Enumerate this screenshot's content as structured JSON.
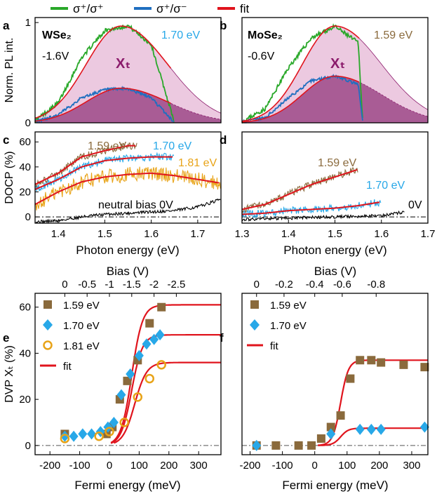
{
  "colors": {
    "green": "#29a829",
    "blue": "#1f6fc0",
    "red": "#e0141d",
    "brown": "#8a6a3c",
    "sky": "#28a8e8",
    "gold": "#e8a317",
    "black": "#000000",
    "fillLight": "#ecc9e0",
    "fillDark": "#a95c95",
    "xt": "#8b1a6b",
    "gray": "#555555"
  },
  "legend": [
    {
      "label": "σ⁺/σ⁺",
      "color": "green"
    },
    {
      "label": "σ⁺/σ⁻",
      "color": "blue"
    },
    {
      "label": "fit",
      "color": "red"
    }
  ],
  "panels": {
    "a": {
      "letter": "a",
      "material": "WSe₂",
      "bias": "-1.6V",
      "energy": "1.70 eV",
      "xt": "Xₜ"
    },
    "b": {
      "letter": "b",
      "material": "MoSe₂",
      "bias": "-0.6V",
      "energy": "1.59 eV",
      "xt": "Xₜ"
    },
    "c": {
      "letter": "c",
      "labels": [
        "1.59 eV",
        "1.70 eV",
        "1.81 eV",
        "neutral bias 0V"
      ]
    },
    "d": {
      "letter": "d",
      "labels": [
        "1.59 eV",
        "1.70 eV",
        "0V"
      ]
    },
    "e": {
      "letter": "e",
      "legend": [
        "1.59 eV",
        "1.70 eV",
        "1.81 eV",
        "fit"
      ]
    },
    "f": {
      "letter": "f",
      "legend": [
        "1.59 eV",
        "1.70 eV",
        "fit"
      ]
    }
  },
  "axes": {
    "pl_ylabel": "Norm. PL int.",
    "docp_ylabel": "DOCP (%)",
    "photon_xlabel": "Photon energy (eV)",
    "dvp_ylabel": "DVP Xₜ (%)",
    "fermi_xlabel": "Fermi energy (meV)",
    "bias_label": "Bias (V)"
  },
  "chart_data": [
    {
      "panel": "a",
      "type": "area",
      "title": "WSe₂, -1.6V, 1.70 eV",
      "xlabel": "",
      "ylabel": "Norm. PL int.",
      "xlim": [
        1.35,
        1.75
      ],
      "ylim": [
        0,
        1.05
      ],
      "yticks": [
        {
          "v": 0,
          "label": "0"
        },
        {
          "v": 1,
          "label": "1"
        }
      ],
      "x": [
        1.35,
        1.4,
        1.45,
        1.5,
        1.55,
        1.6,
        1.65
      ],
      "series": [
        {
          "name": "σ⁺/σ⁺",
          "values": [
            0.02,
            0.2,
            0.65,
            0.92,
            0.97,
            0.78,
            0.0
          ]
        },
        {
          "name": "σ⁺/σ⁻",
          "values": [
            0.01,
            0.08,
            0.25,
            0.33,
            0.34,
            0.25,
            0.0
          ]
        }
      ],
      "fit_peaks": [
        {
          "amp": 0.965,
          "center": 1.535,
          "sl": 0.075,
          "sr": 0.1
        },
        {
          "amp": 0.345,
          "center": 1.535,
          "sl": 0.075,
          "sr": 0.1
        }
      ]
    },
    {
      "panel": "b",
      "type": "area",
      "title": "MoSe₂, -0.6V, 1.59 eV",
      "xlabel": "",
      "ylabel": "",
      "xlim": [
        1.3,
        1.7
      ],
      "ylim": [
        0,
        1.05
      ],
      "x": [
        1.3,
        1.35,
        1.4,
        1.45,
        1.5,
        1.55,
        1.56
      ],
      "series": [
        {
          "name": "σ⁺/σ⁺",
          "values": [
            0.01,
            0.14,
            0.55,
            0.85,
            0.96,
            0.8,
            0.0
          ]
        },
        {
          "name": "σ⁺/σ⁻",
          "values": [
            0.01,
            0.05,
            0.25,
            0.42,
            0.47,
            0.38,
            0.0
          ]
        }
      ],
      "fit_peaks": [
        {
          "amp": 0.965,
          "center": 1.5,
          "sl": 0.07,
          "sr": 0.1
        },
        {
          "amp": 0.465,
          "center": 1.5,
          "sl": 0.07,
          "sr": 0.1
        }
      ]
    },
    {
      "panel": "c",
      "type": "line",
      "xlabel": "Photon energy (eV)",
      "ylabel": "DOCP (%)",
      "xlim": [
        1.35,
        1.75
      ],
      "ylim": [
        -5,
        68
      ],
      "xticks": [
        1.4,
        1.5,
        1.6,
        1.7
      ],
      "yticks": [
        0,
        20,
        40,
        60
      ],
      "series": [
        {
          "name": "1.59 eV",
          "x": [
            1.35,
            1.4,
            1.45,
            1.5,
            1.55,
            1.57
          ],
          "values": [
            26,
            35,
            48,
            53,
            57,
            57
          ]
        },
        {
          "name": "1.70 eV",
          "x": [
            1.35,
            1.4,
            1.45,
            1.5,
            1.55,
            1.6,
            1.65
          ],
          "values": [
            22,
            30,
            40,
            45,
            47,
            48,
            48
          ]
        },
        {
          "name": "1.81 eV",
          "x": [
            1.35,
            1.4,
            1.45,
            1.5,
            1.55,
            1.6,
            1.65,
            1.7,
            1.75
          ],
          "values": [
            10,
            20,
            28,
            32,
            34,
            35,
            33,
            30,
            27
          ]
        },
        {
          "name": "neutral bias 0V",
          "x": [
            1.35,
            1.4,
            1.45,
            1.5,
            1.55,
            1.6,
            1.65,
            1.7,
            1.75
          ],
          "values": [
            -4,
            -3,
            0,
            2,
            3,
            4,
            5,
            8,
            14
          ]
        }
      ]
    },
    {
      "panel": "d",
      "type": "line",
      "xlabel": "Photon energy (eV)",
      "ylabel": "",
      "xlim": [
        1.3,
        1.7
      ],
      "ylim": [
        -5,
        68
      ],
      "xticks": [
        1.3,
        1.4,
        1.5,
        1.6,
        1.7
      ],
      "series": [
        {
          "name": "1.59 eV",
          "x": [
            1.3,
            1.35,
            1.4,
            1.45,
            1.5,
            1.55
          ],
          "values": [
            6,
            10,
            18,
            26,
            32,
            38
          ]
        },
        {
          "name": "1.70 eV",
          "x": [
            1.3,
            1.35,
            1.4,
            1.45,
            1.5,
            1.55,
            1.6
          ],
          "values": [
            2,
            3,
            5,
            6,
            7,
            9,
            12
          ]
        },
        {
          "name": "0V",
          "x": [
            1.3,
            1.4,
            1.5,
            1.6,
            1.65
          ],
          "values": [
            -2,
            -1,
            0,
            1,
            4
          ]
        }
      ]
    },
    {
      "panel": "e",
      "type": "scatter",
      "xlabel": "Fermi energy (meV)",
      "ylabel": "DVP Xₜ (%)",
      "xlim": [
        -250,
        375
      ],
      "ylim": [
        -4,
        66
      ],
      "xticks": [
        -200,
        -100,
        0,
        100,
        200,
        300
      ],
      "yticks": [
        0,
        20,
        40,
        60
      ],
      "top_axis": {
        "label": "Bias (V)",
        "ticks": [
          {
            "x": -150,
            "label": "0"
          },
          {
            "x": -75,
            "label": "-0.5"
          },
          {
            "x": 0,
            "label": "-1"
          },
          {
            "x": 75,
            "label": "-1.5"
          },
          {
            "x": 150,
            "label": "-2"
          },
          {
            "x": 225,
            "label": "-2.5"
          }
        ]
      },
      "series": [
        {
          "name": "1.59 eV",
          "marker": "square",
          "x": [
            -150,
            -10,
            10,
            35,
            60,
            95,
            135,
            175
          ],
          "values": [
            5,
            5,
            8,
            20,
            28,
            37,
            53,
            60
          ]
        },
        {
          "name": "1.70 eV",
          "marker": "diamond",
          "x": [
            -150,
            -120,
            -90,
            -60,
            -30,
            -5,
            15,
            40,
            70,
            100,
            125,
            150,
            170
          ],
          "values": [
            4,
            4,
            5,
            5,
            6,
            8,
            10,
            22,
            31,
            39,
            44,
            46,
            48
          ]
        },
        {
          "name": "1.81 eV",
          "marker": "circle",
          "x": [
            -150,
            -35,
            0,
            50,
            95,
            135,
            175
          ],
          "values": [
            3,
            4,
            6,
            10,
            21,
            29,
            35
          ]
        }
      ],
      "fits": [
        {
          "plateau": 61,
          "x0": 75,
          "w": 18
        },
        {
          "plateau": 48,
          "x0": 75,
          "w": 18
        },
        {
          "plateau": 36,
          "x0": 85,
          "w": 20
        }
      ]
    },
    {
      "panel": "f",
      "type": "scatter",
      "xlabel": "Fermi energy (meV)",
      "ylabel": "",
      "xlim": [
        -225,
        350
      ],
      "ylim": [
        -4,
        66
      ],
      "xticks": [
        -200,
        -100,
        0,
        100,
        200,
        300
      ],
      "top_axis": {
        "label": "Bias (V)",
        "ticks": [
          {
            "x": -180,
            "label": "0"
          },
          {
            "x": -95,
            "label": "-0.2"
          },
          {
            "x": 0,
            "label": "-0.4"
          },
          {
            "x": 85,
            "label": "-0.6"
          },
          {
            "x": 190,
            "label": "-0.8"
          }
        ]
      },
      "series": [
        {
          "name": "1.59 eV",
          "marker": "square",
          "x": [
            -180,
            -120,
            -50,
            -10,
            20,
            50,
            80,
            110,
            140,
            175,
            205,
            275,
            340
          ],
          "values": [
            0,
            0,
            0,
            0,
            3,
            8,
            13,
            29,
            37,
            37,
            36,
            35,
            34
          ]
        },
        {
          "name": "1.70 eV",
          "marker": "diamond",
          "x": [
            -180,
            50,
            140,
            175,
            205,
            340
          ],
          "values": [
            0,
            5,
            7,
            7,
            7,
            8
          ]
        }
      ],
      "fits": [
        {
          "plateau": 37,
          "x0": 80,
          "w": 12
        },
        {
          "plateau": 7.5,
          "x0": 80,
          "w": 12
        }
      ]
    }
  ]
}
